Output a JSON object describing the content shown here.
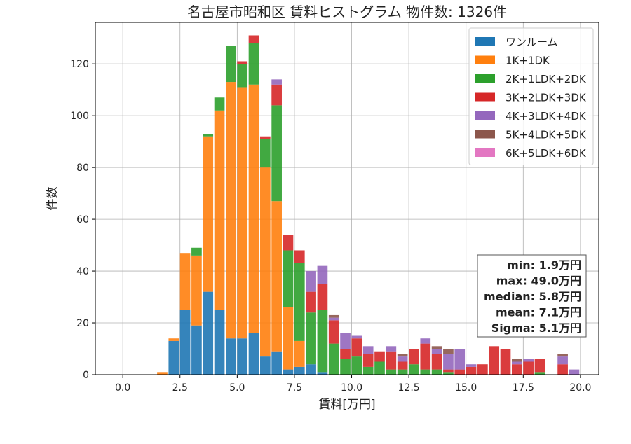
{
  "chart_data": {
    "type": "bar",
    "stacked": true,
    "title": "名古屋市昭和区 賃料ヒストグラム 物件数: 1326件",
    "xlabel": "賃料[万円]",
    "ylabel": "件数",
    "xlim": [
      -1.2,
      20.8
    ],
    "ylim": [
      0,
      136
    ],
    "bar_width": 0.45,
    "grid": true,
    "legend_position": "top-right",
    "x_ticks": [
      {
        "value": 0,
        "label": "0.0"
      },
      {
        "value": 2.5,
        "label": "2.5"
      },
      {
        "value": 5,
        "label": "5.0"
      },
      {
        "value": 7.5,
        "label": "7.5"
      },
      {
        "value": 10,
        "label": "10.0"
      },
      {
        "value": 12.5,
        "label": "12.5"
      },
      {
        "value": 15,
        "label": "15.0"
      },
      {
        "value": 17.5,
        "label": "17.5"
      },
      {
        "value": 20,
        "label": "20.0"
      }
    ],
    "y_ticks": [
      {
        "value": 0,
        "label": "0"
      },
      {
        "value": 20,
        "label": "20"
      },
      {
        "value": 40,
        "label": "40"
      },
      {
        "value": 60,
        "label": "60"
      },
      {
        "value": 80,
        "label": "80"
      },
      {
        "value": 100,
        "label": "100"
      },
      {
        "value": 120,
        "label": "120"
      }
    ],
    "bins": [
      1.5,
      2.0,
      2.5,
      3.0,
      3.5,
      4.0,
      4.5,
      5.0,
      5.5,
      6.0,
      6.5,
      7.0,
      7.5,
      8.0,
      8.5,
      9.0,
      9.5,
      10.0,
      10.5,
      11.0,
      11.5,
      12.0,
      12.5,
      13.0,
      13.5,
      14.0,
      14.5,
      15.0,
      15.5,
      16.0,
      16.5,
      17.0,
      17.5,
      18.0,
      19.0,
      19.5
    ],
    "series": [
      {
        "name": "ワンルーム",
        "color": "#1f77b4",
        "values": [
          0,
          13,
          25,
          19,
          32,
          25,
          14,
          14,
          16,
          7,
          9,
          2,
          3,
          4,
          1,
          0,
          0,
          0,
          0,
          0,
          0,
          0,
          0,
          0,
          0,
          0,
          0,
          0,
          0,
          0,
          0,
          0,
          0,
          0,
          0,
          0
        ]
      },
      {
        "name": "1K+1DK",
        "color": "#ff7f0e",
        "values": [
          1,
          1,
          22,
          27,
          60,
          77,
          99,
          97,
          96,
          73,
          58,
          24,
          10,
          0,
          0,
          0,
          0,
          0,
          0,
          0,
          0,
          0,
          0,
          0,
          0,
          0,
          0,
          0,
          0,
          0,
          0,
          0,
          0,
          0,
          0,
          0
        ]
      },
      {
        "name": "2K+1LDK+2DK",
        "color": "#2ca02c",
        "values": [
          0,
          0,
          0,
          3,
          1,
          5,
          14,
          9,
          16,
          11,
          37,
          22,
          30,
          20,
          24,
          12,
          6,
          7,
          3,
          5,
          2,
          2,
          4,
          2,
          2,
          1,
          0,
          0,
          0,
          0,
          0,
          0,
          0,
          1,
          0,
          0
        ]
      },
      {
        "name": "3K+2LDK+3DK",
        "color": "#d62728",
        "values": [
          0,
          0,
          0,
          0,
          0,
          0,
          0,
          1,
          3,
          1,
          8,
          6,
          5,
          8,
          10,
          9,
          4,
          7,
          5,
          4,
          7,
          3,
          6,
          10,
          6,
          1,
          2,
          3,
          4,
          11,
          10,
          4,
          5,
          5,
          4,
          0
        ]
      },
      {
        "name": "4K+3LDK+4DK",
        "color": "#9467bd",
        "values": [
          0,
          0,
          0,
          0,
          0,
          0,
          0,
          0,
          0,
          0,
          2,
          0,
          0,
          8,
          7,
          1,
          6,
          1,
          3,
          0,
          2,
          2,
          0,
          2,
          2,
          6,
          8,
          1,
          0,
          0,
          0,
          1,
          1,
          0,
          3,
          2
        ]
      },
      {
        "name": "5K+4LDK+5DK",
        "color": "#8c564b",
        "values": [
          0,
          0,
          0,
          0,
          0,
          0,
          0,
          0,
          0,
          0,
          0,
          0,
          0,
          0,
          0,
          1,
          0,
          0,
          0,
          0,
          0,
          1,
          0,
          0,
          1,
          2,
          0,
          0,
          0,
          0,
          0,
          1,
          0,
          0,
          1,
          0
        ]
      },
      {
        "name": "6K+5LDK+6DK",
        "color": "#e377c2",
        "values": [
          0,
          0,
          0,
          0,
          0,
          0,
          0,
          0,
          0,
          0,
          0,
          0,
          0,
          0,
          0,
          0,
          0,
          0,
          0,
          0,
          0,
          0,
          0,
          0,
          0,
          0,
          0,
          0,
          0,
          0,
          0,
          0,
          0,
          0,
          0,
          0
        ]
      }
    ],
    "stats_box": {
      "lines": [
        "min: 1.9万円",
        "max: 49.0万円",
        "median: 5.8万円",
        "mean: 7.1万円",
        "Sigma: 5.1万円"
      ]
    }
  }
}
